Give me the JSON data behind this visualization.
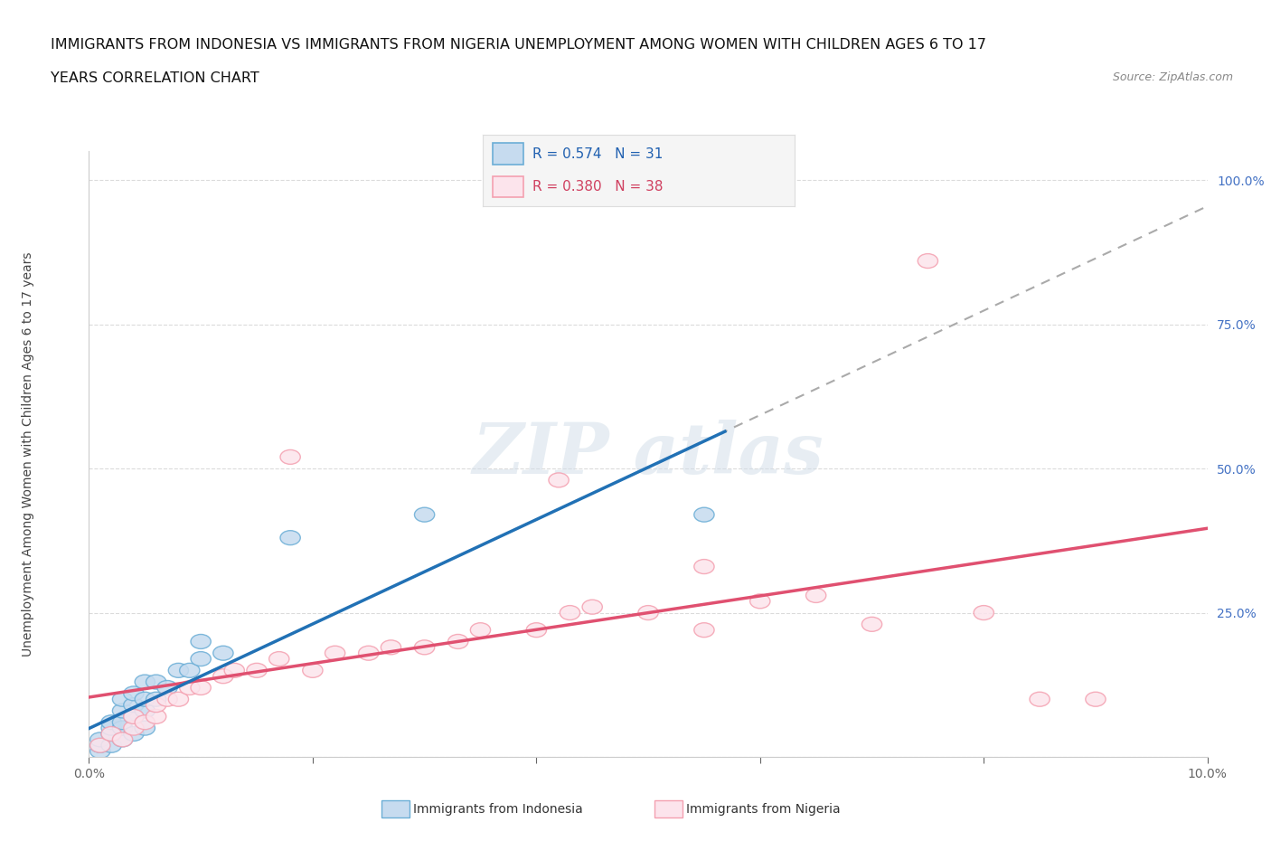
{
  "title_line1": "IMMIGRANTS FROM INDONESIA VS IMMIGRANTS FROM NIGERIA UNEMPLOYMENT AMONG WOMEN WITH CHILDREN AGES 6 TO 17",
  "title_line2": "YEARS CORRELATION CHART",
  "source": "Source: ZipAtlas.com",
  "ylabel": "Unemployment Among Women with Children Ages 6 to 17 years",
  "x_min": 0.0,
  "x_max": 0.1,
  "y_min": 0.0,
  "y_max": 1.05,
  "x_ticks": [
    0.0,
    0.02,
    0.04,
    0.06,
    0.08,
    0.1
  ],
  "y_ticks_right": [
    0.0,
    0.25,
    0.5,
    0.75,
    1.0
  ],
  "r_indonesia": 0.574,
  "n_indonesia": 31,
  "r_nigeria": 0.38,
  "n_nigeria": 38,
  "color_indonesia": "#6baed6",
  "color_nigeria": "#f4a0b0",
  "color_indonesia_fill": "#c6dbef",
  "color_nigeria_fill": "#fce4ec",
  "color_trend_indonesia": "#2171b5",
  "color_trend_nigeria": "#e05070",
  "color_dashed": "#aaaaaa",
  "indonesia_x": [
    0.001,
    0.001,
    0.001,
    0.002,
    0.002,
    0.002,
    0.002,
    0.003,
    0.003,
    0.003,
    0.003,
    0.003,
    0.004,
    0.004,
    0.004,
    0.004,
    0.005,
    0.005,
    0.005,
    0.005,
    0.006,
    0.006,
    0.007,
    0.008,
    0.009,
    0.01,
    0.01,
    0.012,
    0.018,
    0.03,
    0.055
  ],
  "indonesia_y": [
    0.01,
    0.02,
    0.03,
    0.02,
    0.04,
    0.05,
    0.06,
    0.03,
    0.05,
    0.06,
    0.08,
    0.1,
    0.04,
    0.07,
    0.09,
    0.11,
    0.05,
    0.08,
    0.1,
    0.13,
    0.1,
    0.13,
    0.12,
    0.15,
    0.15,
    0.17,
    0.2,
    0.18,
    0.38,
    0.42,
    0.42
  ],
  "nigeria_x": [
    0.001,
    0.002,
    0.003,
    0.004,
    0.004,
    0.005,
    0.006,
    0.006,
    0.007,
    0.008,
    0.009,
    0.01,
    0.012,
    0.013,
    0.015,
    0.017,
    0.018,
    0.02,
    0.022,
    0.025,
    0.027,
    0.03,
    0.033,
    0.035,
    0.04,
    0.042,
    0.043,
    0.045,
    0.05,
    0.055,
    0.06,
    0.065,
    0.07,
    0.075,
    0.08,
    0.085,
    0.055,
    0.09
  ],
  "nigeria_y": [
    0.02,
    0.04,
    0.03,
    0.05,
    0.07,
    0.06,
    0.07,
    0.09,
    0.1,
    0.1,
    0.12,
    0.12,
    0.14,
    0.15,
    0.15,
    0.17,
    0.52,
    0.15,
    0.18,
    0.18,
    0.19,
    0.19,
    0.2,
    0.22,
    0.22,
    0.48,
    0.25,
    0.26,
    0.25,
    0.22,
    0.27,
    0.28,
    0.23,
    0.86,
    0.25,
    0.1,
    0.33,
    0.1
  ],
  "background_color": "#ffffff",
  "grid_color": "#cccccc",
  "legend_bg": "#f5f5f5",
  "legend_border": "#dddddd"
}
